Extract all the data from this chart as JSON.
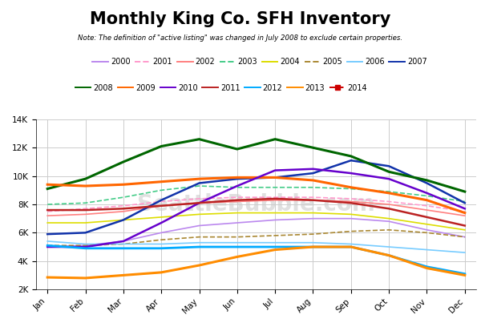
{
  "title": "Monthly King Co. SFH Inventory",
  "subtitle": "Note: The definition of \"active listing\" was changed in July 2008 to exclude certain properties.",
  "months": [
    "Jan",
    "Feb",
    "Mar",
    "Apr",
    "May",
    "Jun",
    "Jul",
    "Aug",
    "Sep",
    "Oct",
    "Nov",
    "Dec"
  ],
  "ylim": [
    2000,
    14000
  ],
  "yticks": [
    2000,
    4000,
    6000,
    8000,
    10000,
    12000,
    14000
  ],
  "ytick_labels": [
    "2K",
    "4K",
    "6K",
    "8K",
    "10K",
    "12K",
    "14K"
  ],
  "watermark": "SeattleBubble.com",
  "series": {
    "2000": {
      "color": "#BB88EE",
      "linestyle": "solid",
      "linewidth": 1.2,
      "data": [
        5000,
        5100,
        5400,
        6000,
        6500,
        6700,
        6900,
        7000,
        7000,
        6800,
        6200,
        5700
      ]
    },
    "2001": {
      "color": "#FF99CC",
      "linestyle": "dashed",
      "linewidth": 1.2,
      "data": [
        7500,
        7700,
        7900,
        8200,
        8400,
        8500,
        8500,
        8500,
        8400,
        8200,
        7900,
        7500
      ]
    },
    "2002": {
      "color": "#FF8080",
      "linestyle": "solid",
      "linewidth": 1.2,
      "data": [
        7200,
        7300,
        7500,
        7900,
        8100,
        8200,
        8300,
        8300,
        8200,
        8000,
        7600,
        7200
      ]
    },
    "2003": {
      "color": "#44CC88",
      "linestyle": "dashed",
      "linewidth": 1.2,
      "data": [
        8000,
        8100,
        8500,
        9000,
        9300,
        9200,
        9200,
        9200,
        9100,
        8900,
        8600,
        8200
      ]
    },
    "2004": {
      "color": "#DDDD00",
      "linestyle": "solid",
      "linewidth": 1.2,
      "data": [
        6700,
        6700,
        6900,
        7100,
        7300,
        7400,
        7400,
        7400,
        7300,
        7000,
        6600,
        6200
      ]
    },
    "2005": {
      "color": "#AA8833",
      "linestyle": "dashed",
      "linewidth": 1.2,
      "data": [
        5100,
        5100,
        5200,
        5500,
        5700,
        5700,
        5800,
        5900,
        6100,
        6200,
        6000,
        5700
      ]
    },
    "2006": {
      "color": "#77CCFF",
      "linestyle": "solid",
      "linewidth": 1.2,
      "data": [
        5400,
        5200,
        5200,
        5200,
        5300,
        5300,
        5300,
        5300,
        5200,
        5000,
        4800,
        4600
      ]
    },
    "2007": {
      "color": "#1133AA",
      "linestyle": "solid",
      "linewidth": 1.8,
      "data": [
        5900,
        6000,
        6900,
        8300,
        9500,
        9800,
        9900,
        10200,
        11100,
        10700,
        9500,
        8100
      ]
    },
    "2008": {
      "color": "#006600",
      "linestyle": "solid",
      "linewidth": 2.2,
      "data": [
        9100,
        9800,
        11000,
        12100,
        12600,
        11900,
        12600,
        12000,
        11400,
        10300,
        9700,
        8900
      ]
    },
    "2009": {
      "color": "#FF6600",
      "linestyle": "solid",
      "linewidth": 2.2,
      "data": [
        9400,
        9300,
        9400,
        9600,
        9800,
        9900,
        9900,
        9700,
        9200,
        8800,
        8300,
        7400
      ]
    },
    "2010": {
      "color": "#6600CC",
      "linestyle": "solid",
      "linewidth": 1.8,
      "data": [
        5000,
        5000,
        5400,
        6700,
        8100,
        9300,
        10400,
        10500,
        10200,
        9800,
        8800,
        7700
      ]
    },
    "2011": {
      "color": "#BB2222",
      "linestyle": "solid",
      "linewidth": 1.8,
      "data": [
        7600,
        7600,
        7700,
        7900,
        8100,
        8300,
        8400,
        8300,
        8100,
        7700,
        7100,
        6500
      ]
    },
    "2012": {
      "color": "#00AAFF",
      "linestyle": "solid",
      "linewidth": 2.0,
      "data": [
        5100,
        4900,
        4900,
        4900,
        5000,
        5000,
        5000,
        5000,
        5000,
        4400,
        3600,
        3100
      ]
    },
    "2013": {
      "color": "#FF8C00",
      "linestyle": "solid",
      "linewidth": 2.2,
      "data": [
        2850,
        2800,
        3000,
        3200,
        3700,
        4300,
        4800,
        5000,
        5000,
        4400,
        3500,
        3000
      ]
    },
    "2014": {
      "color": "#CC0000",
      "linestyle": "dashed",
      "linewidth": 2.0,
      "data": [
        3050,
        null,
        null,
        null,
        null,
        null,
        null,
        null,
        null,
        null,
        null,
        null
      ]
    }
  },
  "legend_row1": [
    "2000",
    "2001",
    "2002",
    "2003",
    "2004",
    "2005",
    "2006",
    "2007"
  ],
  "legend_row2": [
    "2008",
    "2009",
    "2010",
    "2011",
    "2012",
    "2013",
    "2014"
  ],
  "background_color": "#ffffff",
  "grid_color": "#cccccc"
}
